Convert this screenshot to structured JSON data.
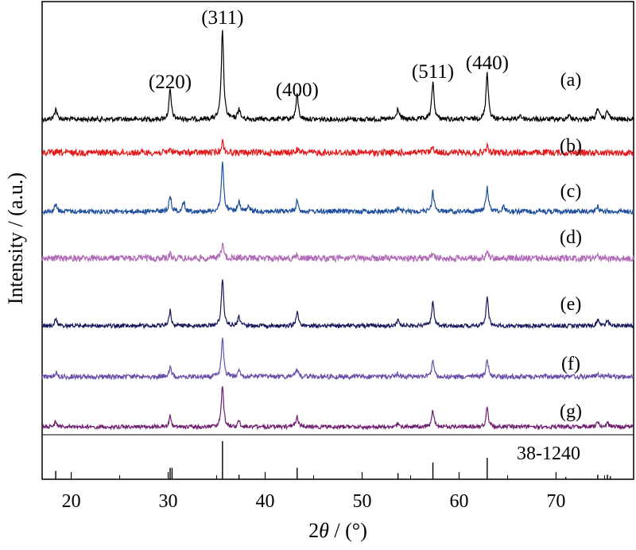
{
  "chart_data": {
    "type": "line",
    "title": "",
    "xlabel_main": "2",
    "xlabel_theta": "θ",
    "xlabel_rest": " / (°)",
    "ylabel": "Intensity / (a.u.)",
    "xlim": [
      17,
      78
    ],
    "x_ticks": [
      20,
      30,
      40,
      50,
      60,
      70
    ],
    "x_tick_labels": [
      "20",
      "30",
      "40",
      "50",
      "60",
      "70"
    ],
    "x_minor_ticks": [
      25,
      35,
      45,
      55,
      65,
      75
    ],
    "peak_labels": [
      {
        "text": "(220)",
        "x": 30.2
      },
      {
        "text": "(311)",
        "x": 35.6
      },
      {
        "text": "(400)",
        "x": 43.3
      },
      {
        "text": "(511)",
        "x": 57.3
      },
      {
        "text": "(440)",
        "x": 62.9
      }
    ],
    "series": [
      {
        "name": "(a)",
        "color": "#000000",
        "peaks": [
          [
            18.4,
            0.12
          ],
          [
            30.2,
            0.33
          ],
          [
            35.6,
            1.0
          ],
          [
            37.3,
            0.12
          ],
          [
            43.3,
            0.28
          ],
          [
            53.7,
            0.12
          ],
          [
            57.3,
            0.42
          ],
          [
            62.9,
            0.54
          ],
          [
            66.3,
            0.05
          ],
          [
            71.3,
            0.05
          ],
          [
            74.3,
            0.14
          ],
          [
            75.3,
            0.1
          ]
        ]
      },
      {
        "name": "(b)",
        "color": "#e31a1c",
        "peaks": [
          [
            30.2,
            0.12
          ],
          [
            35.6,
            0.35
          ],
          [
            43.3,
            0.1
          ],
          [
            57.3,
            0.18
          ],
          [
            62.9,
            0.18
          ]
        ]
      },
      {
        "name": "(c)",
        "color": "#1f4e9c",
        "peaks": [
          [
            18.4,
            0.14
          ],
          [
            30.2,
            0.32
          ],
          [
            31.6,
            0.18
          ],
          [
            35.6,
            1.0
          ],
          [
            37.3,
            0.18
          ],
          [
            38.3,
            0.1
          ],
          [
            43.3,
            0.22
          ],
          [
            53.7,
            0.06
          ],
          [
            57.3,
            0.4
          ],
          [
            62.9,
            0.5
          ],
          [
            64.6,
            0.1
          ],
          [
            74.3,
            0.1
          ]
        ]
      },
      {
        "name": "(d)",
        "color": "#b06ab8",
        "peaks": [
          [
            30.2,
            0.12
          ],
          [
            35.6,
            0.45
          ],
          [
            37.3,
            0.05
          ],
          [
            43.3,
            0.1
          ],
          [
            57.3,
            0.14
          ],
          [
            62.9,
            0.2
          ],
          [
            74.3,
            0.05
          ]
        ]
      },
      {
        "name": "(e)",
        "color": "#15185a",
        "peaks": [
          [
            18.4,
            0.14
          ],
          [
            30.2,
            0.32
          ],
          [
            35.6,
            1.0
          ],
          [
            37.3,
            0.18
          ],
          [
            43.3,
            0.3
          ],
          [
            53.7,
            0.14
          ],
          [
            57.3,
            0.5
          ],
          [
            62.9,
            0.62
          ],
          [
            74.3,
            0.14
          ],
          [
            75.3,
            0.12
          ]
        ]
      },
      {
        "name": "(f)",
        "color": "#6a4ea8",
        "peaks": [
          [
            18.4,
            0.1
          ],
          [
            30.2,
            0.22
          ],
          [
            35.6,
            0.9
          ],
          [
            37.3,
            0.12
          ],
          [
            43.3,
            0.18
          ],
          [
            53.7,
            0.06
          ],
          [
            57.3,
            0.36
          ],
          [
            62.9,
            0.4
          ],
          [
            74.3,
            0.08
          ],
          [
            75.3,
            0.06
          ]
        ]
      },
      {
        "name": "(g)",
        "color": "#6e1e6e",
        "peaks": [
          [
            18.4,
            0.12
          ],
          [
            30.2,
            0.24
          ],
          [
            35.6,
            0.9
          ],
          [
            37.3,
            0.12
          ],
          [
            43.3,
            0.22
          ],
          [
            53.7,
            0.08
          ],
          [
            57.3,
            0.36
          ],
          [
            62.9,
            0.42
          ],
          [
            74.3,
            0.1
          ],
          [
            75.3,
            0.08
          ]
        ]
      }
    ],
    "reference": {
      "label": "38-1240",
      "lines": [
        [
          18.4,
          0.22
        ],
        [
          30.2,
          0.3
        ],
        [
          30.4,
          0.3
        ],
        [
          35.6,
          1.0
        ],
        [
          37.3,
          0.12
        ],
        [
          43.3,
          0.3
        ],
        [
          53.7,
          0.16
        ],
        [
          57.3,
          0.44
        ],
        [
          62.9,
          0.56
        ],
        [
          71.0,
          0.06
        ],
        [
          74.3,
          0.12
        ],
        [
          75.3,
          0.12
        ],
        [
          75.6,
          0.08
        ]
      ]
    }
  }
}
